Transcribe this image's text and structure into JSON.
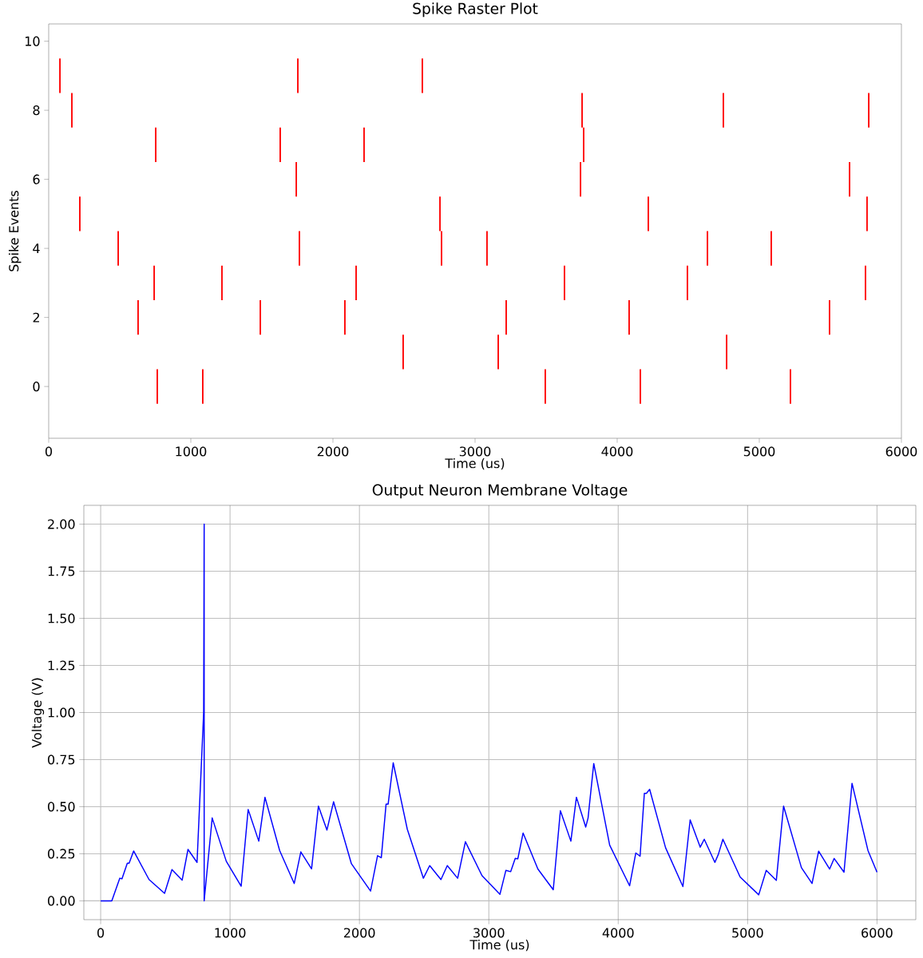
{
  "chart_data": [
    {
      "type": "bar",
      "title": "Spike Raster Plot",
      "xlabel": "Time (us)",
      "ylabel": "Spike Events",
      "xlim": [
        0,
        6000
      ],
      "ylim": [
        -1.5,
        10.5
      ],
      "xticks": [
        0,
        1000,
        2000,
        3000,
        4000,
        5000,
        6000
      ],
      "yticks": [
        0,
        2,
        4,
        6,
        8,
        10
      ],
      "series": [
        {
          "color": "#ff0000",
          "x": [
            79,
            163,
            219,
            489,
            629,
            742,
            753,
            764,
            1084,
            1219,
            1489,
            1629,
            1742,
            1753,
            1764,
            2084,
            2163,
            2219,
            2494,
            2629,
            2753,
            2764,
            3084,
            3163,
            3219,
            3494,
            3629,
            3742,
            3753,
            3764,
            4084,
            4163,
            4219,
            4494,
            4635,
            4747,
            4770,
            5084,
            5219,
            5494,
            5635,
            5747,
            5758,
            5770
          ],
          "values": [
            1,
            1,
            1,
            1,
            1,
            1,
            1,
            1,
            1,
            1,
            1,
            1,
            1,
            1,
            1,
            1,
            1,
            1,
            1,
            1,
            1,
            1,
            1,
            1,
            1,
            1,
            1,
            1,
            1,
            1,
            1,
            1,
            1,
            1,
            1,
            1,
            1,
            1,
            1,
            1,
            1,
            1,
            1,
            1
          ],
          "base": [
            8.5,
            7.5,
            4.5,
            3.5,
            1.5,
            2.5,
            6.5,
            -0.5,
            -0.5,
            2.5,
            1.5,
            6.5,
            5.5,
            8.5,
            3.5,
            1.5,
            2.5,
            6.5,
            0.5,
            8.5,
            4.5,
            3.5,
            3.5,
            0.5,
            1.5,
            -0.5,
            2.5,
            5.5,
            7.5,
            6.5,
            1.5,
            -0.5,
            4.5,
            2.5,
            3.5,
            7.5,
            0.5,
            3.5,
            -0.5,
            1.5,
            5.5,
            2.5,
            4.5,
            7.5
          ]
        }
      ]
    },
    {
      "type": "line",
      "title": "Output Neuron Membrane Voltage",
      "xlabel": "Time (us)",
      "ylabel": "Voltage (V)",
      "grid": true,
      "xlim": [
        -130,
        6300
      ],
      "ylim": [
        -0.1,
        2.1
      ],
      "xticks": [
        0,
        1000,
        2000,
        3000,
        4000,
        5000,
        6000
      ],
      "yticks": [
        {
          "value": 0,
          "label": "0.00"
        },
        {
          "value": 0.25,
          "label": "0.25"
        },
        {
          "value": 0.5,
          "label": "0.50"
        },
        {
          "value": 0.75,
          "label": "0.75"
        },
        {
          "value": 1,
          "label": "1.00"
        },
        {
          "value": 1.25,
          "label": "1.25"
        },
        {
          "value": 1.5,
          "label": "1.50"
        },
        {
          "value": 1.75,
          "label": "1.75"
        },
        {
          "value": 2,
          "label": "2.00"
        }
      ],
      "series": [
        {
          "color": "#0000ff",
          "x": [
            0,
            86,
            148,
            165,
            206,
            220,
            255,
            374,
            494,
            551,
            630,
            675,
            745,
            796,
            800,
            800,
            862,
            971,
            1086,
            1140,
            1222,
            1270,
            1383,
            1496,
            1547,
            1630,
            1683,
            1749,
            1800,
            1938,
            2086,
            2140,
            2169,
            2206,
            2222,
            2261,
            2370,
            2494,
            2543,
            2630,
            2679,
            2759,
            2819,
            2947,
            3086,
            3132,
            3169,
            3204,
            3224,
            3265,
            3379,
            3498,
            3553,
            3634,
            3677,
            3749,
            3767,
            3811,
            3934,
            4088,
            4136,
            4169,
            4202,
            4218,
            4243,
            4366,
            4500,
            4556,
            4634,
            4665,
            4747,
            4774,
            4809,
            4942,
            5086,
            5144,
            5222,
            5278,
            5416,
            5498,
            5549,
            5634,
            5669,
            5745,
            5807,
            5930,
            6000
          ],
          "values": [
            0,
            0,
            0.12,
            0.117,
            0.2,
            0.2,
            0.265,
            0.113,
            0.04,
            0.166,
            0.11,
            0.273,
            0.204,
            1.0,
            2.0,
            0,
            0.44,
            0.21,
            0.078,
            0.485,
            0.317,
            0.55,
            0.268,
            0.092,
            0.26,
            0.17,
            0.503,
            0.376,
            0.526,
            0.197,
            0.052,
            0.24,
            0.229,
            0.514,
            0.514,
            0.733,
            0.38,
            0.12,
            0.187,
            0.113,
            0.187,
            0.12,
            0.314,
            0.134,
            0.035,
            0.162,
            0.155,
            0.225,
            0.223,
            0.36,
            0.169,
            0.059,
            0.479,
            0.317,
            0.55,
            0.392,
            0.44,
            0.729,
            0.296,
            0.08,
            0.254,
            0.237,
            0.571,
            0.571,
            0.592,
            0.282,
            0.076,
            0.43,
            0.285,
            0.327,
            0.204,
            0.247,
            0.327,
            0.127,
            0.032,
            0.162,
            0.109,
            0.503,
            0.176,
            0.092,
            0.264,
            0.169,
            0.225,
            0.152,
            0.624,
            0.268,
            0.152
          ]
        }
      ]
    }
  ]
}
